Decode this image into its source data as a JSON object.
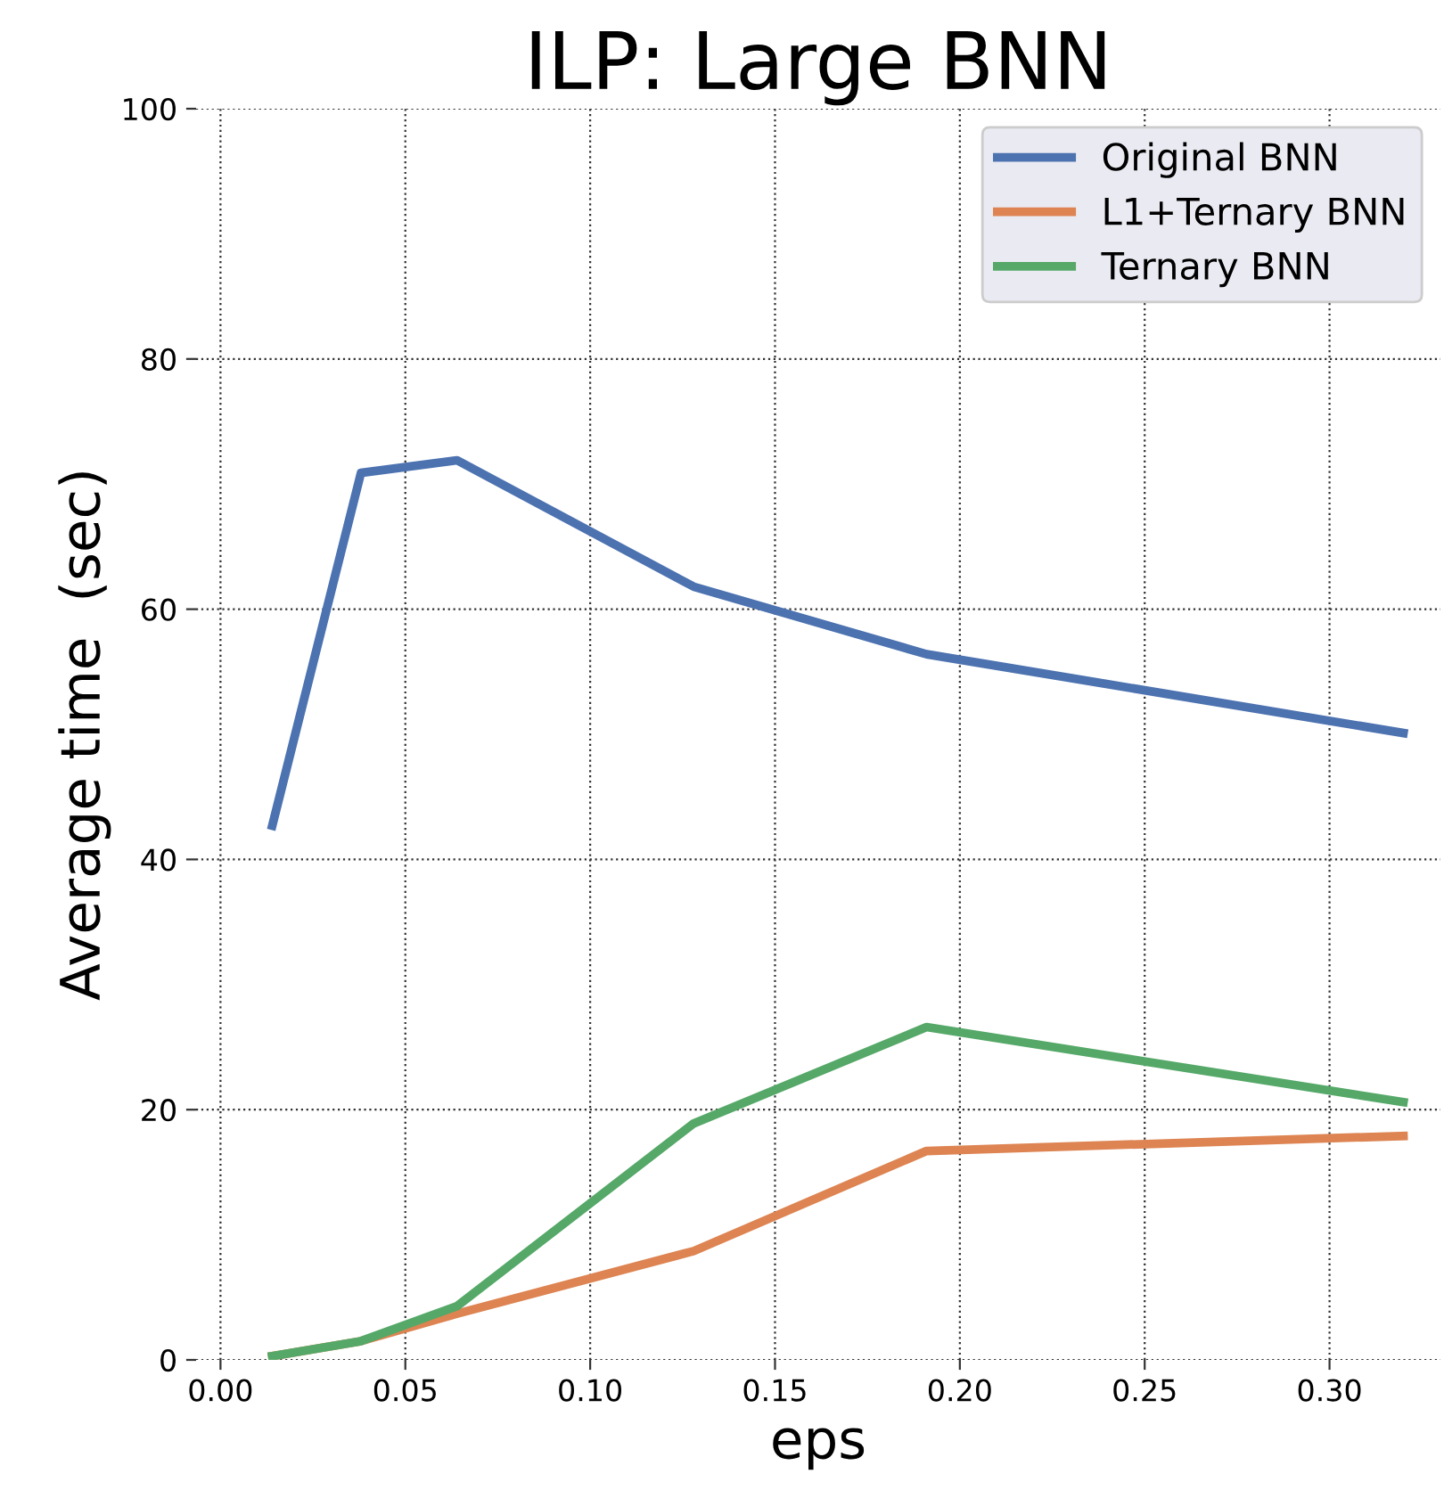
{
  "chart_data": {
    "type": "line",
    "title": "ILP: Large BNN",
    "xlabel": "eps",
    "ylabel": "Average time  (sec)",
    "x": [
      0.014,
      0.038,
      0.064,
      0.128,
      0.191,
      0.32
    ],
    "series": [
      {
        "name": "Original BNN",
        "color": "#4c72b0",
        "values": [
          42.7,
          70.9,
          71.9,
          61.8,
          56.4,
          50.1
        ]
      },
      {
        "name": "L1+Ternary BNN",
        "color": "#dd8452",
        "values": [
          0.3,
          1.5,
          3.7,
          8.7,
          16.7,
          17.9
        ]
      },
      {
        "name": "Ternary BNN",
        "color": "#55a868",
        "values": [
          0.3,
          1.5,
          4.3,
          18.9,
          26.6,
          20.6
        ]
      }
    ],
    "xlim": [
      -0.0066,
      0.33
    ],
    "ylim": [
      0,
      100
    ],
    "xticks": [
      {
        "value": 0,
        "label": "0.00"
      },
      {
        "value": 0.05,
        "label": "0.05"
      },
      {
        "value": 0.1,
        "label": "0.10"
      },
      {
        "value": 0.15,
        "label": "0.15"
      },
      {
        "value": 0.2,
        "label": "0.20"
      },
      {
        "value": 0.25,
        "label": "0.25"
      },
      {
        "value": 0.3,
        "label": "0.30"
      }
    ],
    "yticks": [
      0,
      20,
      40,
      60,
      80,
      100
    ],
    "grid": true,
    "legend": "top right",
    "marker": "none",
    "line_style": "solid"
  }
}
